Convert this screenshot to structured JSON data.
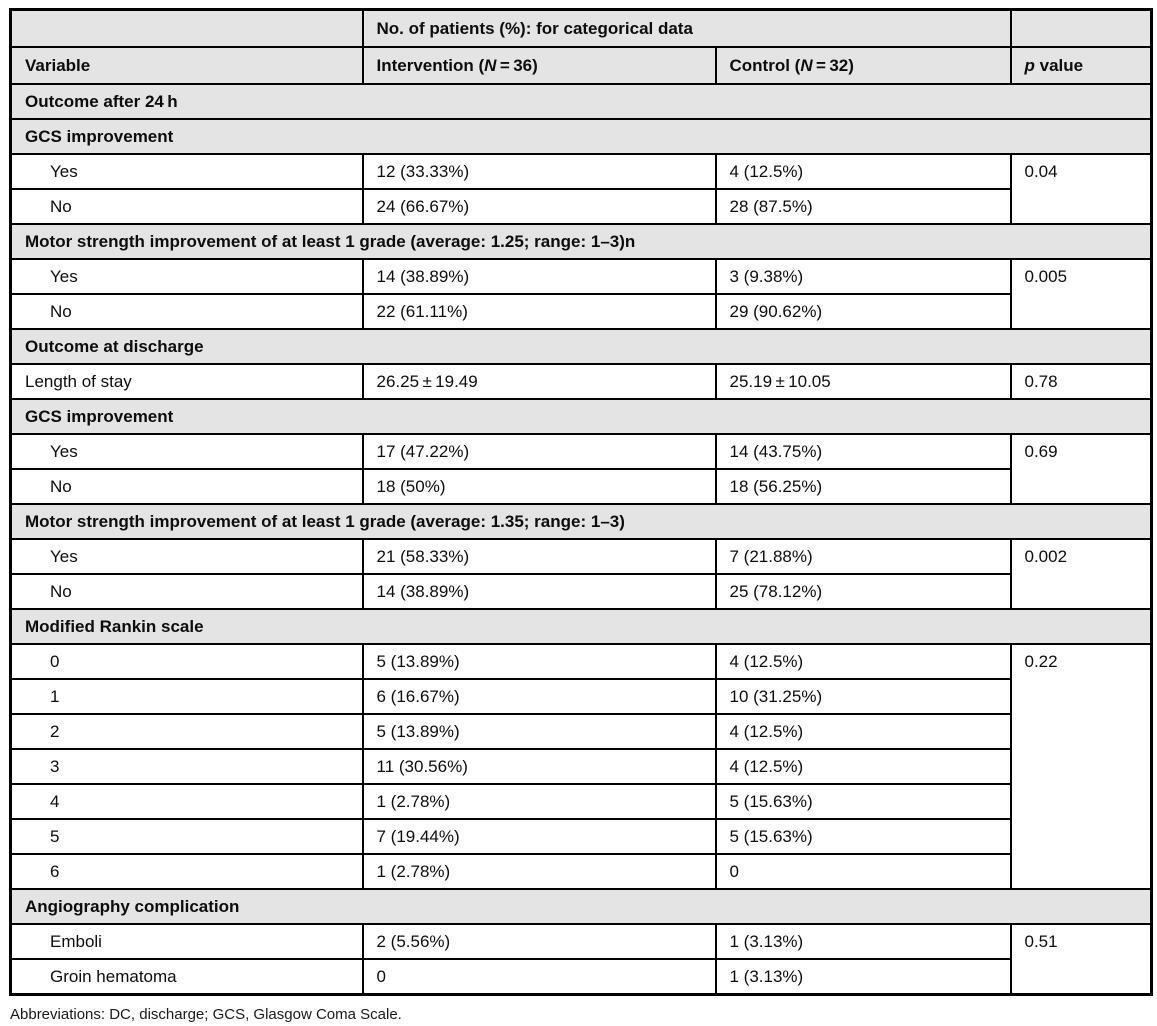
{
  "meta": {
    "section_bg_color": "#e4e4e4",
    "border_color": "#000000",
    "text_color": "#0d0d0d"
  },
  "table": {
    "span_header": "No. of patients (%): for categorical data",
    "columns": {
      "variable": "Variable",
      "intervention": {
        "pre": "Intervention (",
        "n": "N",
        "post": " = 36)"
      },
      "control": {
        "pre": "Control (",
        "n": "N",
        "post": " = 32)"
      },
      "pvalue": {
        "p": "p",
        "post": " value"
      }
    },
    "rows": [
      {
        "type": "section",
        "label": "Outcome after 24 h"
      },
      {
        "type": "section",
        "label": "GCS improvement"
      },
      {
        "type": "data",
        "indent": true,
        "label": "Yes",
        "intervention": "12 (33.33%)",
        "control": "4 (12.5%)",
        "p": "0.04",
        "p_rowspan": 2
      },
      {
        "type": "data",
        "indent": true,
        "label": "No",
        "intervention": "24 (66.67%)",
        "control": "28 (87.5%)"
      },
      {
        "type": "section",
        "label": "Motor strength improvement of at least 1 grade (average: 1.25; range: 1–3)n"
      },
      {
        "type": "data",
        "indent": true,
        "label": "Yes",
        "intervention": "14 (38.89%)",
        "control": "3 (9.38%)",
        "p": "0.005",
        "p_rowspan": 2
      },
      {
        "type": "data",
        "indent": true,
        "label": "No",
        "intervention": "22 (61.11%)",
        "control": "29 (90.62%)"
      },
      {
        "type": "section",
        "label": "Outcome at discharge"
      },
      {
        "type": "data",
        "indent": false,
        "label": "Length of stay",
        "intervention": "26.25 ± 19.49",
        "control": "25.19 ± 10.05",
        "p": "0.78",
        "p_rowspan": 1
      },
      {
        "type": "section",
        "label": "GCS improvement"
      },
      {
        "type": "data",
        "indent": true,
        "label": "Yes",
        "intervention": "17 (47.22%)",
        "control": "14 (43.75%)",
        "p": "0.69",
        "p_rowspan": 2
      },
      {
        "type": "data",
        "indent": true,
        "label": "No",
        "intervention": "18 (50%)",
        "control": "18 (56.25%)"
      },
      {
        "type": "section",
        "label": "Motor strength improvement of at least 1 grade (average: 1.35; range: 1–3)"
      },
      {
        "type": "data",
        "indent": true,
        "label": "Yes",
        "intervention": "21 (58.33%)",
        "control": "7 (21.88%)",
        "p": "0.002",
        "p_rowspan": 2
      },
      {
        "type": "data",
        "indent": true,
        "label": "No",
        "intervention": "14 (38.89%)",
        "control": "25 (78.12%)"
      },
      {
        "type": "section",
        "label": "Modified Rankin scale"
      },
      {
        "type": "data",
        "indent": true,
        "label": "0",
        "intervention": "5 (13.89%)",
        "control": "4 (12.5%)",
        "p": "0.22",
        "p_rowspan": 7
      },
      {
        "type": "data",
        "indent": true,
        "label": "1",
        "intervention": "6 (16.67%)",
        "control": "10 (31.25%)"
      },
      {
        "type": "data",
        "indent": true,
        "label": "2",
        "intervention": "5 (13.89%)",
        "control": "4 (12.5%)"
      },
      {
        "type": "data",
        "indent": true,
        "label": "3",
        "intervention": "11 (30.56%)",
        "control": "4 (12.5%)"
      },
      {
        "type": "data",
        "indent": true,
        "label": "4",
        "intervention": "1 (2.78%)",
        "control": "5 (15.63%)"
      },
      {
        "type": "data",
        "indent": true,
        "label": "5",
        "intervention": "7 (19.44%)",
        "control": "5 (15.63%)"
      },
      {
        "type": "data",
        "indent": true,
        "label": "6",
        "intervention": "1 (2.78%)",
        "control": "0"
      },
      {
        "type": "section",
        "label": "Angiography complication"
      },
      {
        "type": "data",
        "indent": true,
        "label": "Emboli",
        "intervention": "2 (5.56%)",
        "control": "1 (3.13%)",
        "p": "0.51",
        "p_rowspan": 2
      },
      {
        "type": "data",
        "indent": true,
        "label": "Groin hematoma",
        "intervention": "0",
        "control": "1 (3.13%)"
      }
    ]
  },
  "footnote": "Abbreviations: DC, discharge; GCS, Glasgow Coma Scale."
}
